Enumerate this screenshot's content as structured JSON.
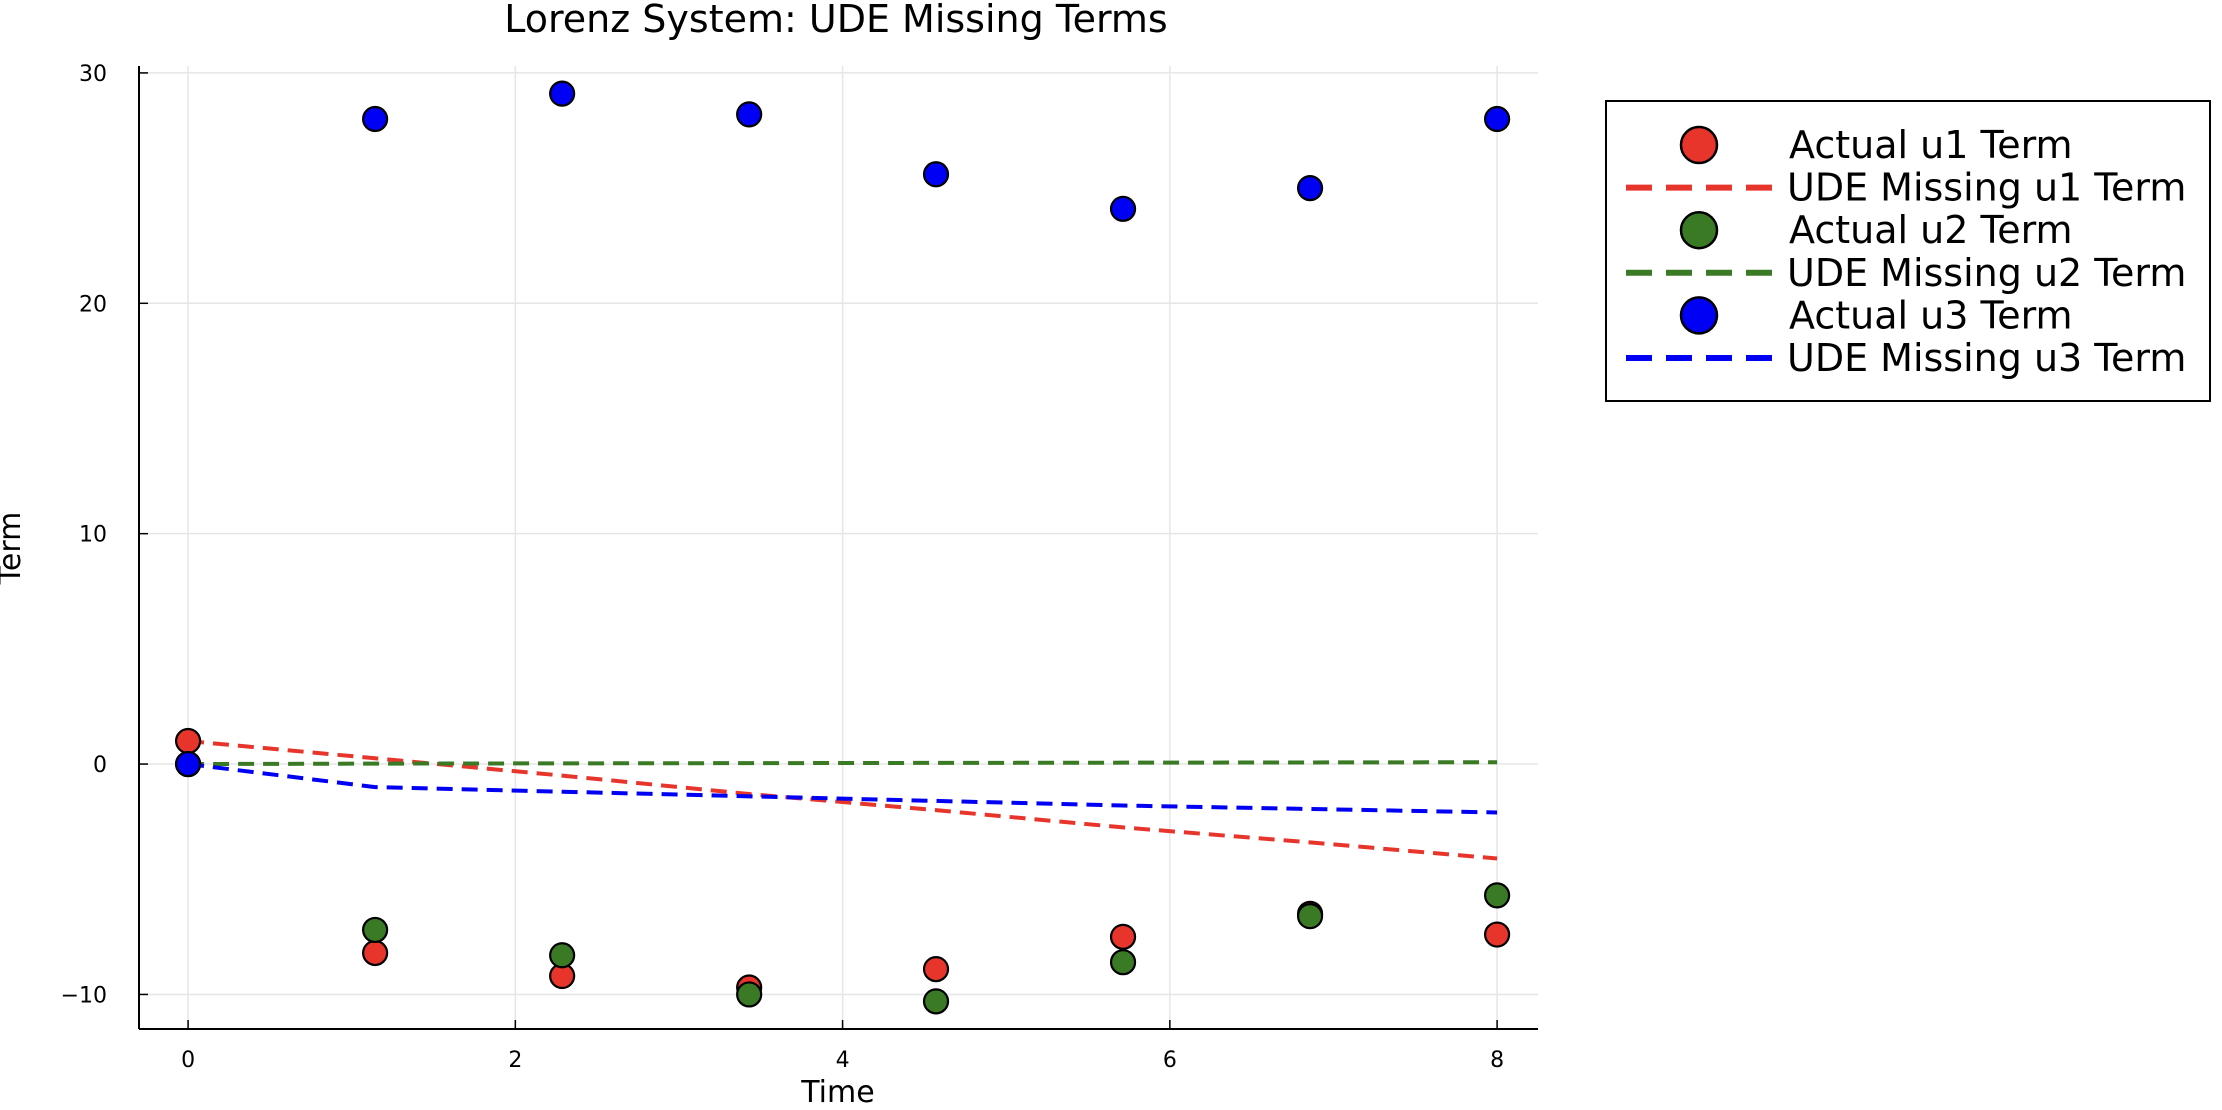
{
  "chart_data": {
    "type": "scatter",
    "title": "Lorenz System: UDE Missing Terms",
    "xlabel": "Time",
    "ylabel": "Term",
    "xlim": [
      -0.3,
      8.25
    ],
    "ylim": [
      -11.5,
      30.3
    ],
    "xticks": [
      0,
      2,
      4,
      6,
      8
    ],
    "yticks": [
      -10,
      0,
      10,
      20,
      30
    ],
    "xtick_labels": [
      "0",
      "2",
      "4",
      "6",
      "8"
    ],
    "ytick_labels": [
      "−10",
      "0",
      "10",
      "20",
      "30"
    ],
    "grid": true,
    "legend_position": "outer-top-right",
    "series": [
      {
        "name": "Actual u1 Term",
        "kind": "scatter",
        "color": "#e8352c",
        "x": [
          0,
          1.143,
          2.286,
          3.429,
          4.571,
          5.714,
          6.857,
          8.0
        ],
        "y": [
          1.0,
          -8.2,
          -9.2,
          -9.7,
          -8.9,
          -7.5,
          -6.5,
          -7.4
        ]
      },
      {
        "name": "UDE Missing u1 Term",
        "kind": "line",
        "color": "#e8352c",
        "x": [
          0,
          1.143,
          2.286,
          3.429,
          4.571,
          5.714,
          6.857,
          8.0
        ],
        "y": [
          1.0,
          0.25,
          -0.5,
          -1.3,
          -2.0,
          -2.75,
          -3.4,
          -4.1
        ]
      },
      {
        "name": "Actual u2 Term",
        "kind": "scatter",
        "color": "#3b7a25",
        "x": [
          0,
          1.143,
          2.286,
          3.429,
          4.571,
          5.714,
          6.857,
          8.0
        ],
        "y": [
          0.0,
          -7.2,
          -8.3,
          -10.0,
          -10.3,
          -8.6,
          -6.6,
          -5.7
        ]
      },
      {
        "name": "UDE Missing u2 Term",
        "kind": "line",
        "color": "#3b7a25",
        "x": [
          0,
          1.143,
          2.286,
          3.429,
          4.571,
          5.714,
          6.857,
          8.0
        ],
        "y": [
          0.0,
          0.02,
          0.03,
          0.04,
          0.05,
          0.06,
          0.07,
          0.08
        ]
      },
      {
        "name": "Actual u3 Term",
        "kind": "scatter",
        "color": "#0000f5",
        "x": [
          0,
          1.143,
          2.286,
          3.429,
          4.571,
          5.714,
          6.857,
          8.0
        ],
        "y": [
          0.0,
          28.0,
          29.1,
          28.2,
          25.6,
          24.1,
          25.0,
          28.0
        ]
      },
      {
        "name": "UDE Missing u3 Term",
        "kind": "line",
        "color": "#0000f5",
        "x": [
          0,
          1.143,
          2.286,
          3.429,
          4.571,
          5.714,
          6.857,
          8.0
        ],
        "y": [
          0.0,
          -1.0,
          -1.2,
          -1.4,
          -1.6,
          -1.8,
          -1.95,
          -2.1
        ]
      }
    ]
  }
}
